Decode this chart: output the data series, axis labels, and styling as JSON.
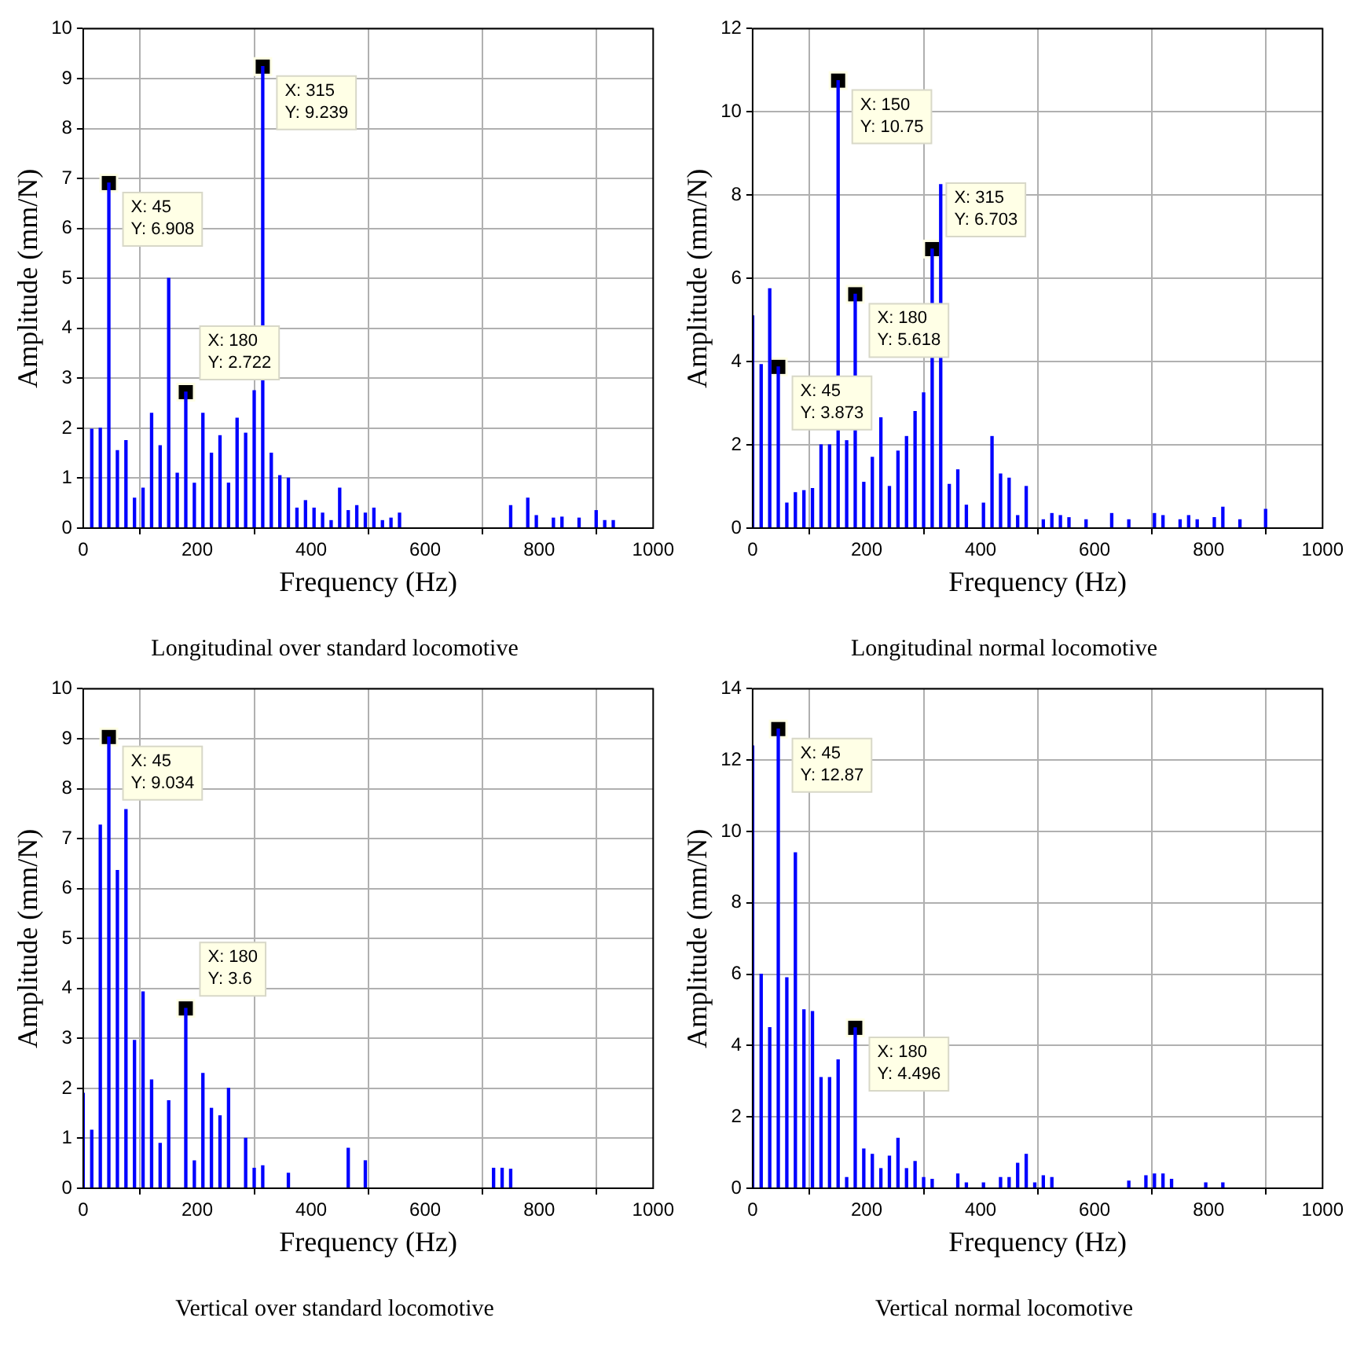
{
  "chart_data": [
    {
      "type": "bar",
      "title": "Longitudinal over standard locomotive",
      "xlabel": "Frequency (Hz)",
      "ylabel": "Amplitude (mm/N)",
      "xlim": [
        0,
        1000
      ],
      "xticks": [
        0,
        200,
        400,
        600,
        800,
        1000
      ],
      "ylim": [
        0,
        10
      ],
      "yticks": [
        0,
        1,
        2,
        3,
        4,
        5,
        6,
        7,
        8,
        9,
        10
      ],
      "grid": true,
      "x": [
        15,
        30,
        45,
        60,
        75,
        90,
        105,
        120,
        135,
        150,
        165,
        180,
        195,
        210,
        225,
        240,
        255,
        270,
        285,
        300,
        315,
        330,
        345,
        360,
        375,
        390,
        405,
        420,
        435,
        450,
        465,
        480,
        495,
        510,
        525,
        540,
        555,
        750,
        780,
        795,
        825,
        840,
        870,
        900,
        915,
        930
      ],
      "series": [
        {
          "color": "#0000ff",
          "values": [
            1.98,
            2.0,
            6.908,
            1.55,
            1.75,
            0.6,
            0.8,
            2.3,
            1.65,
            5.0,
            1.1,
            2.722,
            0.9,
            2.3,
            1.5,
            1.85,
            0.9,
            2.2,
            1.9,
            2.75,
            9.239,
            1.5,
            1.05,
            1.0,
            0.4,
            0.55,
            0.4,
            0.3,
            0.15,
            0.8,
            0.35,
            0.45,
            0.3,
            0.4,
            0.15,
            0.2,
            0.3,
            0.45,
            0.6,
            0.25,
            0.2,
            0.22,
            0.2,
            0.35,
            0.15,
            0.15
          ]
        }
      ],
      "annotations": [
        {
          "text": "X: 45\nY: 6.908",
          "x": 45,
          "y": 6.908
        },
        {
          "text": "X: 180\nY: 2.722",
          "x": 180,
          "y": 2.722
        },
        {
          "text": "X: 315\nY: 9.239",
          "x": 315,
          "y": 9.239
        }
      ]
    },
    {
      "type": "bar",
      "title": "Longitudinal normal locomotive",
      "xlabel": "Frequency (Hz)",
      "ylabel": "Amplitude (mm/N)",
      "xlim": [
        0,
        1000
      ],
      "xticks": [
        0,
        200,
        400,
        600,
        800,
        1000
      ],
      "ylim": [
        0,
        12
      ],
      "yticks": [
        0,
        2,
        4,
        6,
        8,
        10,
        12
      ],
      "grid": true,
      "x": [
        0,
        15,
        30,
        45,
        60,
        75,
        90,
        105,
        120,
        135,
        150,
        165,
        180,
        195,
        210,
        225,
        240,
        255,
        270,
        285,
        300,
        315,
        330,
        345,
        360,
        375,
        405,
        420,
        435,
        450,
        465,
        480,
        510,
        525,
        540,
        555,
        585,
        630,
        660,
        705,
        720,
        750,
        765,
        780,
        810,
        825,
        855,
        900
      ],
      "series": [
        {
          "color": "#0000ff",
          "values": [
            5.1,
            3.93,
            5.75,
            3.873,
            0.6,
            0.85,
            0.9,
            0.95,
            2.0,
            2.0,
            10.75,
            2.1,
            5.618,
            1.1,
            1.7,
            2.65,
            1.0,
            1.85,
            2.2,
            2.8,
            3.25,
            6.703,
            8.25,
            1.05,
            1.4,
            0.55,
            0.6,
            2.2,
            1.3,
            1.2,
            0.3,
            1.0,
            0.2,
            0.35,
            0.3,
            0.25,
            0.2,
            0.35,
            0.2,
            0.35,
            0.3,
            0.2,
            0.3,
            0.2,
            0.25,
            0.5,
            0.2,
            0.45
          ]
        }
      ],
      "annotations": [
        {
          "text": "X: 45\nY: 3.873",
          "x": 45,
          "y": 3.873
        },
        {
          "text": "X: 150\nY: 10.75",
          "x": 150,
          "y": 10.75
        },
        {
          "text": "X: 180\nY: 5.618",
          "x": 180,
          "y": 5.618
        },
        {
          "text": "X: 315\nY: 6.703",
          "x": 315,
          "y": 6.703
        }
      ]
    },
    {
      "type": "bar",
      "title": "Vertical over standard locomotive",
      "xlabel": "Frequency (Hz)",
      "ylabel": "Amplitude (mm/N)",
      "xlim": [
        0,
        1000
      ],
      "xticks": [
        0,
        200,
        400,
        600,
        800,
        1000
      ],
      "ylim": [
        0,
        10
      ],
      "yticks": [
        0,
        1,
        2,
        3,
        4,
        5,
        6,
        7,
        8,
        9,
        10
      ],
      "grid": true,
      "x": [
        0,
        15,
        30,
        45,
        60,
        75,
        90,
        105,
        120,
        135,
        150,
        180,
        195,
        210,
        225,
        240,
        255,
        285,
        300,
        315,
        360,
        465,
        495,
        720,
        735,
        750
      ],
      "series": [
        {
          "color": "#0000ff",
          "values": [
            1.9,
            1.16,
            7.27,
            9.034,
            6.36,
            7.58,
            2.96,
            3.93,
            2.17,
            0.9,
            1.75,
            3.6,
            0.55,
            2.3,
            1.6,
            1.45,
            2.0,
            1.0,
            0.4,
            0.45,
            0.3,
            0.8,
            0.55,
            0.4,
            0.4,
            0.38
          ]
        }
      ],
      "annotations": [
        {
          "text": "X: 45\nY: 9.034",
          "x": 45,
          "y": 9.034
        },
        {
          "text": "X: 180\nY: 3.6",
          "x": 180,
          "y": 3.6
        }
      ]
    },
    {
      "type": "bar",
      "title": "Vertical normal locomotive",
      "xlabel": "Frequency (Hz)",
      "ylabel": "Amplitude (mm/N)",
      "xlim": [
        0,
        1000
      ],
      "xticks": [
        0,
        200,
        400,
        600,
        800,
        1000
      ],
      "ylim": [
        0,
        14
      ],
      "yticks": [
        0,
        2,
        4,
        6,
        8,
        10,
        12,
        14
      ],
      "grid": true,
      "x": [
        0,
        15,
        30,
        45,
        60,
        75,
        90,
        105,
        120,
        135,
        150,
        165,
        180,
        195,
        210,
        225,
        240,
        255,
        270,
        285,
        300,
        315,
        360,
        375,
        405,
        435,
        450,
        465,
        480,
        495,
        510,
        525,
        660,
        690,
        705,
        720,
        735,
        795,
        825
      ],
      "series": [
        {
          "color": "#0000ff",
          "values": [
            12.4,
            6.0,
            4.5,
            12.87,
            5.9,
            9.4,
            5.0,
            4.95,
            3.1,
            3.1,
            3.6,
            0.3,
            4.496,
            1.1,
            0.95,
            0.55,
            0.9,
            1.4,
            0.55,
            0.75,
            0.3,
            0.25,
            0.4,
            0.15,
            0.15,
            0.3,
            0.3,
            0.7,
            0.95,
            0.15,
            0.35,
            0.3,
            0.2,
            0.35,
            0.4,
            0.4,
            0.25,
            0.15,
            0.15
          ]
        }
      ],
      "annotations": [
        {
          "text": "X: 45\nY: 12.87",
          "x": 45,
          "y": 12.87
        },
        {
          "text": "X: 180\nY: 4.496",
          "x": 180,
          "y": 4.496
        }
      ]
    }
  ]
}
